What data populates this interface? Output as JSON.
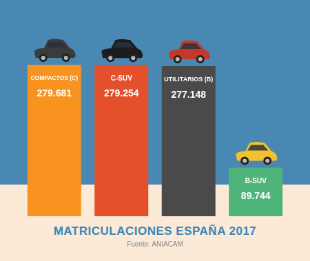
{
  "chart_data": {
    "type": "bar",
    "title": "MATRICULACIONES ESPAÑA 2017",
    "subtitle": "Fuente: ANIACAM",
    "categories": [
      "COMPACTOS (C)",
      "C-SUV",
      "UTILITARIOS (B)",
      "B-SUV"
    ],
    "values": [
      279681,
      279254,
      277148,
      89744
    ],
    "value_labels": [
      "279.681",
      "279.254",
      "277.148",
      "89.744"
    ],
    "colors": [
      "#f7931e",
      "#e4502b",
      "#4a4a4a",
      "#4fb47a"
    ],
    "data_labels": true,
    "tick_labels": false,
    "grid": false
  }
}
